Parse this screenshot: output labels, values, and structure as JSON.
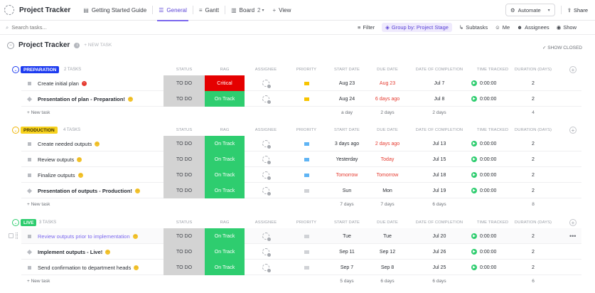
{
  "topbar": {
    "title": "Project Tracker",
    "tabs": [
      {
        "label": "Getting Started Guide",
        "icon": "doc-icon"
      },
      {
        "label": "General",
        "icon": "list-icon",
        "active": true
      },
      {
        "label": "Gantt",
        "icon": "gantt-icon"
      },
      {
        "label": "Board",
        "icon": "board-icon",
        "count": "2"
      },
      {
        "label": "View",
        "icon": "plus-icon"
      }
    ],
    "automate_label": "Automate",
    "share_label": "Share"
  },
  "toolbar": {
    "search_placeholder": "Search tasks...",
    "filter_label": "Filter",
    "group_by_label": "Group by: Project Stage",
    "subtasks_label": "Subtasks",
    "me_label": "Me",
    "assignees_label": "Assignees",
    "show_label": "Show"
  },
  "page": {
    "title": "Project Tracker",
    "new_task_label": "+ NEW TASK",
    "show_closed_label": "SHOW CLOSED"
  },
  "columns": {
    "status": "STATUS",
    "rag": "RAG",
    "assignee": "ASSIGNEE",
    "priority": "PRIORITY",
    "start_date": "START DATE",
    "due_date": "DUE DATE",
    "date_of_completion": "DATE OF COMPLETION",
    "time_tracked": "TIME TRACKED",
    "duration": "DURATION (DAYS)"
  },
  "new_task_row_label": "+ New task",
  "colors": {
    "preparation": "#1e3cf0",
    "production": "#f7d21e",
    "live": "#2ecd6f",
    "on_track": "#2ecd6f",
    "critical": "#e50000",
    "status_todo": "#d3d3d3"
  },
  "groups": [
    {
      "label": "PREPARATION",
      "count": "2 TASKS",
      "tasks": [
        {
          "name": "Create initial plan",
          "bold": false,
          "pill": "red",
          "status": "TO DO",
          "rag": "Critical",
          "rag_color": "red",
          "priority": "yellow",
          "start": "Aug 23",
          "due": "Aug 23",
          "due_red": true,
          "completion": "Jul 7",
          "time": "0:00:00",
          "duration": "2"
        },
        {
          "name": "Presentation of plan - Preparation!",
          "bold": true,
          "pill": "yellow",
          "status": "TO DO",
          "rag": "On Track",
          "rag_color": "green",
          "priority": "yellow",
          "start": "Aug 24",
          "due": "6 days ago",
          "due_red": true,
          "completion": "Jul 8",
          "time": "0:00:00",
          "duration": "2"
        }
      ],
      "summary": {
        "start": "a day",
        "due": "2 days",
        "completion": "2 days",
        "duration": "4"
      }
    },
    {
      "label": "PRODUCTION",
      "count": "4 TASKS",
      "tasks": [
        {
          "name": "Create needed outputs",
          "bold": false,
          "pill": "yellow",
          "status": "TO DO",
          "rag": "On Track",
          "rag_color": "green",
          "priority": "blue",
          "start": "3 days ago",
          "due": "2 days ago",
          "due_red": true,
          "completion": "Jul 13",
          "time": "0:00:00",
          "duration": "2"
        },
        {
          "name": "Review outputs",
          "bold": false,
          "pill": "yellow",
          "status": "TO DO",
          "rag": "On Track",
          "rag_color": "green",
          "priority": "blue",
          "start": "Yesterday",
          "due": "Today",
          "due_red": true,
          "completion": "Jul 15",
          "time": "0:00:00",
          "duration": "2"
        },
        {
          "name": "Finalize outputs",
          "bold": false,
          "pill": "yellow",
          "status": "TO DO",
          "rag": "On Track",
          "rag_color": "green",
          "priority": "blue",
          "start": "Tomorrow",
          "start_red": true,
          "due": "Tomorrow",
          "due_red": true,
          "completion": "Jul 18",
          "time": "0:00:00",
          "duration": "2"
        },
        {
          "name": "Presentation of outputs - Production!",
          "bold": true,
          "pill": "yellow",
          "status": "TO DO",
          "rag": "On Track",
          "rag_color": "green",
          "priority": "grey",
          "start": "Sun",
          "due": "Mon",
          "due_red": false,
          "completion": "Jul 19",
          "time": "0:00:00",
          "duration": "2"
        }
      ],
      "summary": {
        "start": "7 days",
        "due": "7 days",
        "completion": "6 days",
        "duration": "8"
      }
    },
    {
      "label": "LIVE",
      "count": "3 TASKS",
      "tasks": [
        {
          "name": "Review outputs prior to implementation",
          "bold": false,
          "link": true,
          "pill": "yellow",
          "status": "TO DO",
          "rag": "On Track",
          "rag_color": "green",
          "priority": "grey",
          "start": "Tue",
          "due": "Tue",
          "due_red": false,
          "completion": "Jul 20",
          "time": "0:00:00",
          "duration": "2",
          "hover": true
        },
        {
          "name": "Implement outputs - Live!",
          "bold": true,
          "pill": "yellow",
          "status": "TO DO",
          "rag": "On Track",
          "rag_color": "green",
          "priority": "grey",
          "start": "Sep 11",
          "due": "Sep 12",
          "due_red": false,
          "completion": "Jul 26",
          "time": "0:00:00",
          "duration": "2"
        },
        {
          "name": "Send confirmation to department heads",
          "bold": false,
          "pill": "yellow",
          "status": "TO DO",
          "rag": "On Track",
          "rag_color": "green",
          "priority": "grey",
          "start": "Sep 7",
          "due": "Sep 8",
          "due_red": false,
          "completion": "Jul 25",
          "time": "0:00:00",
          "duration": "2"
        }
      ],
      "summary": {
        "start": "5 days",
        "due": "6 days",
        "completion": "6 days",
        "duration": "6"
      }
    }
  ]
}
